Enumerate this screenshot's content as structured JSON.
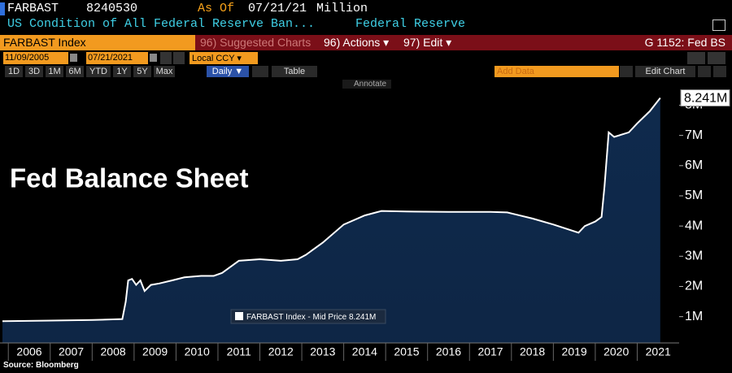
{
  "header": {
    "ticker": "FARBAST",
    "value": "8240530",
    "as_of_label": "As Of",
    "as_of_date": "07/21/21",
    "unit": "Million",
    "description": "US Condition of All Federal Reserve Ban...",
    "source_name": "Federal Reserve"
  },
  "menu": {
    "security": "FARBAST Index",
    "suggested": "96) Suggested Charts",
    "actions": "96) Actions ▾",
    "edit": "97) Edit ▾",
    "page": "G 1152: Fed BS"
  },
  "controls": {
    "start_date": "11/09/2005",
    "end_date": "07/21/2021",
    "currency": "Local CCY ▾"
  },
  "toolbar": {
    "ranges": [
      "1D",
      "3D",
      "1M",
      "6M",
      "YTD",
      "1Y",
      "5Y",
      "Max"
    ],
    "frequency": "Daily ▼",
    "table": "Table",
    "add_data": "Add Data",
    "edit_chart": "Edit Chart",
    "annotate": "Annotate"
  },
  "footer": {
    "source": "Source: Bloomberg"
  },
  "chart_data": {
    "type": "line",
    "title": "Fed Balance Sheet",
    "series": [
      {
        "name": "FARBAST Index - Mid Price",
        "color": "#ffffff",
        "fill": "#0f2a4d",
        "x": [
          2005.86,
          2007.0,
          2008.0,
          2008.72,
          2008.8,
          2008.86,
          2008.95,
          2009.05,
          2009.15,
          2009.25,
          2009.4,
          2009.6,
          2009.9,
          2010.2,
          2010.6,
          2010.9,
          2011.1,
          2011.4,
          2011.5,
          2012.0,
          2012.5,
          2012.9,
          2013.1,
          2013.5,
          2014.0,
          2014.5,
          2014.9,
          2015.5,
          2016.5,
          2017.5,
          2017.9,
          2018.5,
          2019.0,
          2019.6,
          2019.75,
          2020.0,
          2020.15,
          2020.22,
          2020.32,
          2020.45,
          2020.8,
          2021.0,
          2021.3,
          2021.55
        ],
        "values": [
          0.85,
          0.87,
          0.89,
          0.92,
          1.5,
          2.2,
          2.25,
          2.05,
          2.2,
          1.85,
          2.05,
          2.1,
          2.2,
          2.3,
          2.35,
          2.35,
          2.45,
          2.75,
          2.85,
          2.9,
          2.85,
          2.9,
          3.05,
          3.45,
          4.05,
          4.35,
          4.5,
          4.48,
          4.47,
          4.47,
          4.45,
          4.25,
          4.05,
          3.78,
          4.0,
          4.15,
          4.3,
          5.3,
          7.1,
          6.95,
          7.1,
          7.4,
          7.8,
          8.241
        ]
      }
    ],
    "last_value": 8.241,
    "last_value_label": "8.241M",
    "xlim": [
      2005.86,
      2022.0
    ],
    "xticks": [
      2006,
      2007,
      2008,
      2009,
      2010,
      2011,
      2012,
      2013,
      2014,
      2015,
      2016,
      2017,
      2018,
      2019,
      2020,
      2021
    ],
    "ylim": [
      0.13,
      8.47
    ],
    "yticks": [
      {
        "value": 1,
        "label": "1M"
      },
      {
        "value": 2,
        "label": "2M"
      },
      {
        "value": 3,
        "label": "3M"
      },
      {
        "value": 4,
        "label": "4M"
      },
      {
        "value": 5,
        "label": "5M"
      },
      {
        "value": 6,
        "label": "6M"
      },
      {
        "value": 7,
        "label": "7M"
      },
      {
        "value": 8,
        "label": "8M"
      }
    ]
  }
}
